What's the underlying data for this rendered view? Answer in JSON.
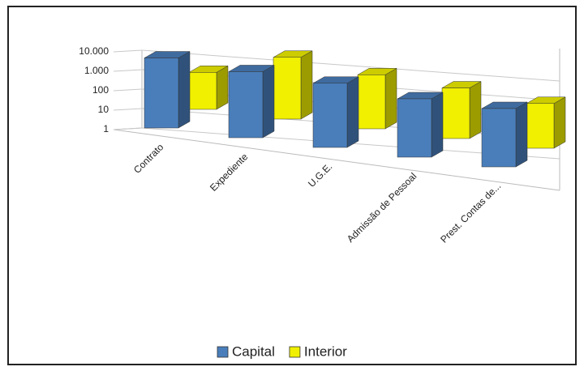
{
  "chart_data": {
    "type": "bar3d",
    "categories": [
      "Contrato",
      "Expediente",
      "U.G.E.",
      "Admissão de Pessoal",
      "Prest. Contas de..."
    ],
    "series": [
      {
        "name": "Capital",
        "color": "#4a7ebb",
        "values": [
          4000,
          2500,
          2000,
          1000,
          1000
        ]
      },
      {
        "name": "Interior",
        "color": "#f0f000",
        "values": [
          80,
          1500,
          600,
          400,
          200
        ]
      }
    ],
    "ylim": [
      1,
      10000
    ],
    "yticks": [
      1,
      10,
      100,
      {
        "value": 1000,
        "label": "1.000"
      },
      {
        "value": 10000,
        "label": "10.000"
      }
    ],
    "log_scale": true,
    "grid": true,
    "legend": "bottom"
  }
}
